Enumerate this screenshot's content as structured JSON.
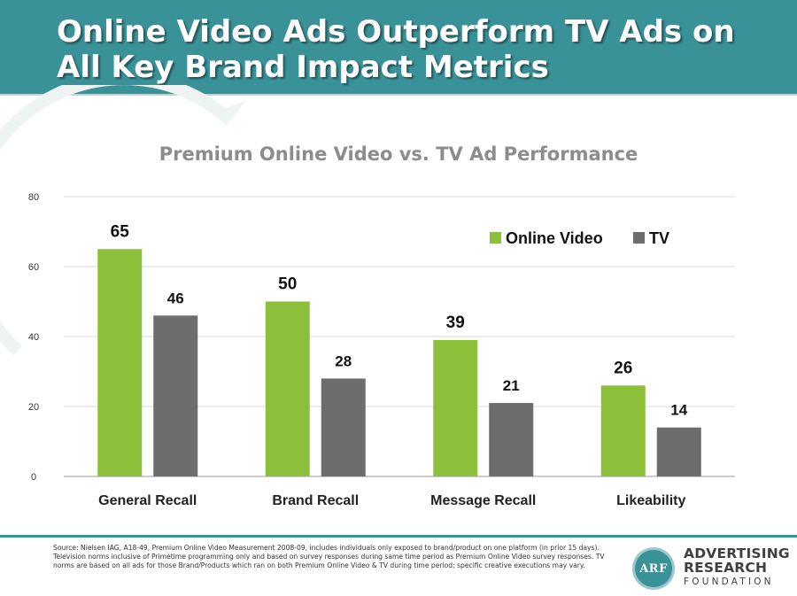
{
  "header": {
    "title": "Online Video Ads Outperform TV Ads on All Key Brand Impact Metrics",
    "background_color": "#3a9299"
  },
  "chart_data": {
    "type": "bar",
    "title": "Premium Online Video vs. TV Ad Performance",
    "xlabel": "",
    "ylabel": "",
    "categories": [
      "General Recall",
      "Brand Recall",
      "Message Recall",
      "Likeability"
    ],
    "series": [
      {
        "name": "Online Video",
        "values": [
          65,
          50,
          39,
          26
        ],
        "color": "#8dc03a"
      },
      {
        "name": "TV",
        "values": [
          46,
          28,
          21,
          14
        ],
        "color": "#6d6d6d"
      }
    ],
    "ylim": [
      0,
      80
    ],
    "yticks": [
      0,
      20,
      40,
      60,
      80
    ],
    "grid": true,
    "legend_position": "top-right"
  },
  "footer": {
    "source": "Source: Nielsen IAG, A18-49, Premium Online Video Measurement 2008-09, includes individuals only exposed to brand/product on one platform (in prior 15 days). Television norms inclusive of Primetime programming only and based on survey responses during same time period as Premium Online Video survey responses. TV norms are based on all ads for those Brand/Products which ran on both Premium Online Video & TV during time period; specific creative executions may vary.",
    "logo": {
      "mark": "ARF",
      "line1": "ADVERTISING",
      "line2": "RESEARCH",
      "line3": "FOUNDATION"
    }
  }
}
